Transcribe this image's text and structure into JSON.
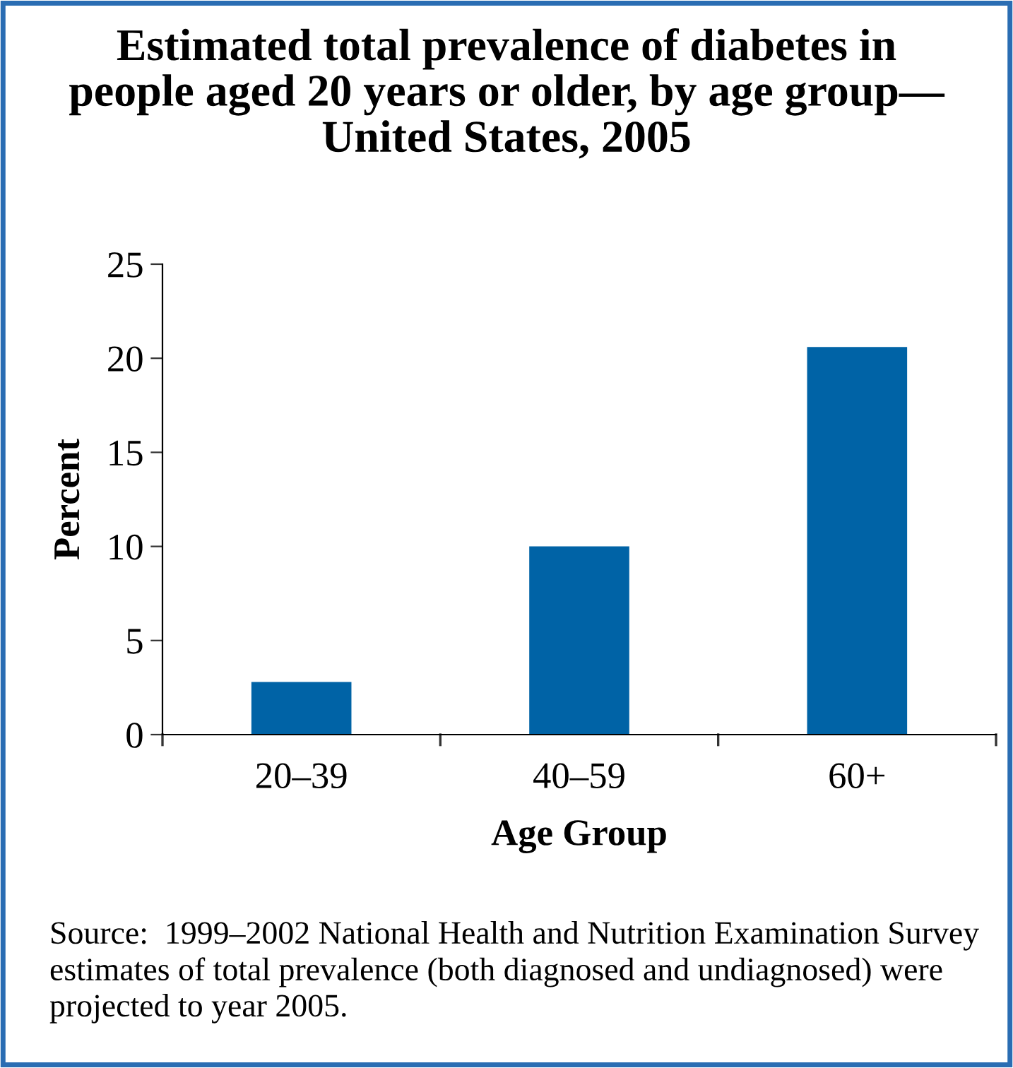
{
  "chart_data": {
    "type": "bar",
    "title": "Estimated total prevalence of diabetes in\npeople aged 20 years or older, by age group—\nUnited States, 2005",
    "xlabel": "Age Group",
    "ylabel": "Percent",
    "categories": [
      "20–39",
      "40–59",
      "60+"
    ],
    "values": [
      2.8,
      10.0,
      20.6
    ],
    "color": "#0063a6",
    "ylim": [
      0,
      25
    ],
    "yticks": [
      0,
      5,
      10,
      15,
      20,
      25
    ],
    "grid": false,
    "legend": false,
    "annotations": [
      "Source:  1999–2002 National Health and Nutrition Examination Survey estimates of total prevalence (both diagnosed and undiagnosed) were projected to year 2005."
    ]
  }
}
